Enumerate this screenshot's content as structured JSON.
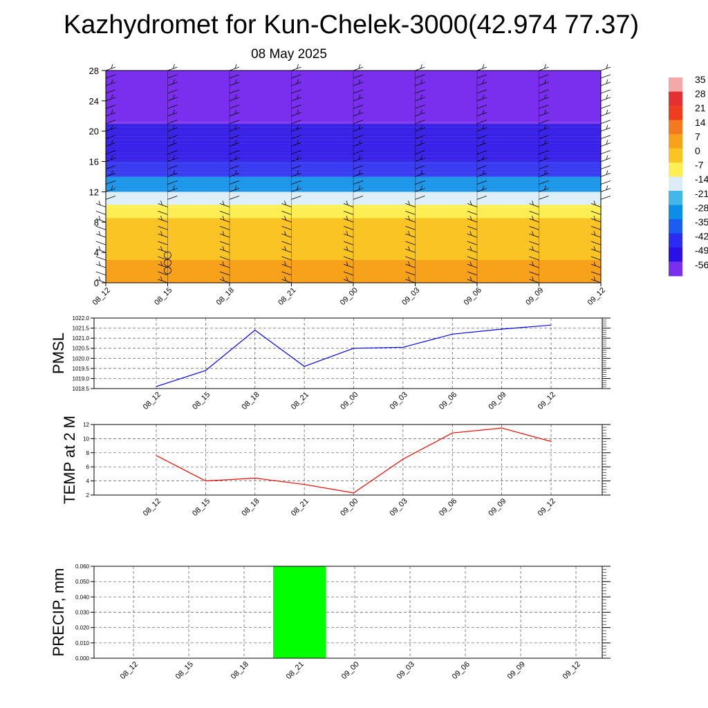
{
  "title": "Kazhydromet for Kun-Chelek-3000(42.974 77.37)",
  "subtitle": "08 May 2025",
  "colorbar": {
    "labels": [
      "35",
      "28",
      "21",
      "14",
      "7",
      "0",
      "-7",
      "-14",
      "-21",
      "-28",
      "-35",
      "-42",
      "-49",
      "-56"
    ],
    "colors": [
      "#f4a8a8",
      "#e43030",
      "#f03c1e",
      "#f57a1f",
      "#f8a21c",
      "#fbc425",
      "#fdee53",
      "#dbeef7",
      "#43b7ea",
      "#0b8ee6",
      "#1a5df0",
      "#2a2cf2",
      "#2a10e6",
      "#7a2fee"
    ]
  },
  "chart_data": [
    {
      "type": "heatmap",
      "name": "cross-section",
      "x": [
        "08_12",
        "08_15",
        "08_18",
        "08_21",
        "09_00",
        "09_03",
        "09_06",
        "09_09",
        "09_12"
      ],
      "yticks": [
        0,
        4,
        8,
        12,
        16,
        20,
        24,
        28
      ],
      "ylim": [
        0,
        28
      ],
      "bands": [
        {
          "from": 0,
          "to": 3,
          "value": 2
        },
        {
          "from": 3,
          "to": 6,
          "value": 0
        },
        {
          "from": 6,
          "to": 8.5,
          "value": -4
        },
        {
          "from": 8.5,
          "to": 10.3,
          "value": -8
        },
        {
          "from": 10.3,
          "to": 12,
          "value": -18
        },
        {
          "from": 12,
          "to": 14,
          "value": -30
        },
        {
          "from": 14,
          "to": 16,
          "value": -42
        },
        {
          "from": 16,
          "to": 19,
          "value": -50
        },
        {
          "from": 19,
          "to": 21,
          "value": -54
        },
        {
          "from": 21,
          "to": 28,
          "value": -58
        }
      ]
    },
    {
      "type": "line",
      "name": "PMSL",
      "ylabel": "PMSL",
      "x": [
        "08_12",
        "08_15",
        "08_18",
        "08_21",
        "09_00",
        "09_03",
        "09_06",
        "09_09",
        "09_12"
      ],
      "values": [
        1018.6,
        1019.4,
        1021.4,
        1019.6,
        1020.5,
        1020.55,
        1021.2,
        1021.45,
        1021.65
      ],
      "ylim": [
        1018.5,
        1022.0
      ],
      "yticks": [
        "1018.5",
        "1019.0",
        "1019.5",
        "1020.0",
        "1020.5",
        "1021.0",
        "1021.5",
        "1022.0"
      ],
      "color": "#0000ff"
    },
    {
      "type": "line",
      "name": "TEMP",
      "ylabel": "TEMP at 2 M",
      "x": [
        "08_12",
        "08_15",
        "08_18",
        "08_21",
        "09_00",
        "09_03",
        "09_06",
        "09_09",
        "09_12"
      ],
      "values": [
        7.6,
        4.0,
        4.4,
        3.5,
        2.3,
        7.1,
        10.8,
        11.5,
        9.6
      ],
      "ylim": [
        2,
        12
      ],
      "yticks": [
        "2",
        "4",
        "6",
        "8",
        "10",
        "12"
      ],
      "color": "#ff0000"
    },
    {
      "type": "bar",
      "name": "PRECIP",
      "ylabel": "PRECIP, mm",
      "x": [
        "08_12",
        "08_15",
        "08_18",
        "08_21",
        "09_00",
        "09_03",
        "09_06",
        "09_09",
        "09_12"
      ],
      "values": [
        0,
        0,
        0,
        0.06,
        0,
        0,
        0,
        0,
        0
      ],
      "ylim": [
        0,
        0.06
      ],
      "yticks": [
        "0.000",
        "0.010",
        "0.020",
        "0.030",
        "0.040",
        "0.050",
        "0.060"
      ],
      "color": "#00ff00"
    }
  ]
}
